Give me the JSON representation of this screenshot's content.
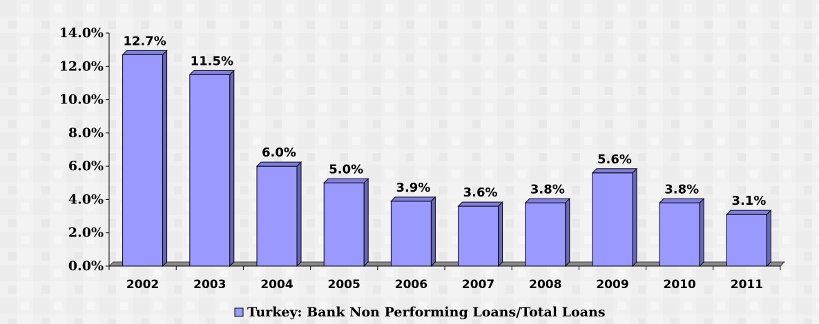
{
  "chart_data": {
    "type": "bar",
    "categories": [
      "2002",
      "2003",
      "2004",
      "2005",
      "2006",
      "2007",
      "2008",
      "2009",
      "2010",
      "2011"
    ],
    "series": [
      {
        "name": "Turkey: Bank Non Performing Loans/Total Loans",
        "values": [
          12.7,
          11.5,
          6.0,
          5.0,
          3.9,
          3.6,
          3.8,
          5.6,
          3.8,
          3.1
        ],
        "labels": [
          "12.7%",
          "11.5%",
          "6.0%",
          "5.0%",
          "3.9%",
          "3.6%",
          "3.8%",
          "5.6%",
          "3.8%",
          "3.1%"
        ]
      }
    ],
    "ylim": [
      0,
      14
    ],
    "yticks": [
      "0.0%",
      "2.0%",
      "4.0%",
      "6.0%",
      "8.0%",
      "10.0%",
      "12.0%",
      "14.0%"
    ],
    "title": "",
    "xlabel": "",
    "ylabel": "",
    "grid": false,
    "legend_position": "bottom",
    "colors": {
      "bar_front": "#9999ff",
      "bar_top": "#7f7fe0",
      "bar_side": "#6666bb",
      "floor": "#8a8a8a"
    }
  }
}
